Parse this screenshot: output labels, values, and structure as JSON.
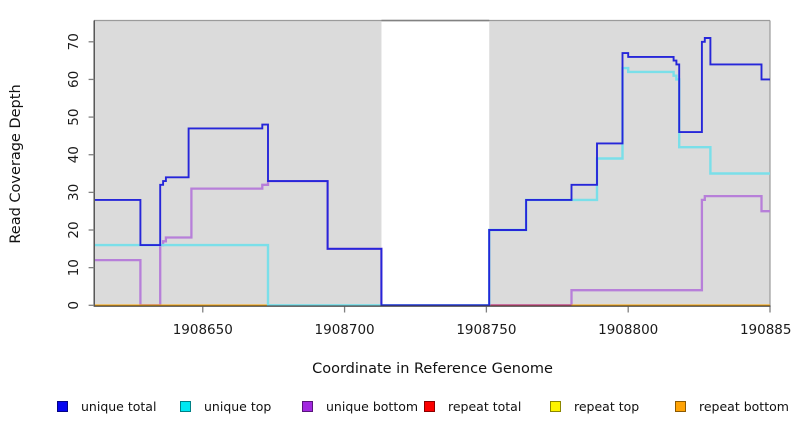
{
  "chart_data": {
    "type": "line",
    "subtype": "step-post-coverage-plot",
    "title": "",
    "xlabel": "Coordinate in Reference Genome",
    "ylabel": "Read Coverage Depth",
    "xlim": [
      1908612,
      1908850
    ],
    "ylim": [
      0,
      75
    ],
    "x_ticks": [
      1908650,
      1908700,
      1908750,
      1908800,
      1908850
    ],
    "x_tick_labels": [
      "1908650",
      "1908700",
      "1908750",
      "1908800",
      "1908850"
    ],
    "y_ticks": [
      0,
      10,
      20,
      30,
      40,
      50,
      60,
      70
    ],
    "y_tick_labels": [
      "0",
      "10",
      "20",
      "30",
      "40",
      "50",
      "60",
      "70"
    ],
    "grid": false,
    "panel_background": "#dbdbdb",
    "panel_border_color": "#9b9b9b",
    "gap_region": {
      "from": 1908713,
      "to": 1908751,
      "color": "#ffffff",
      "top_border_color": "#828282"
    },
    "baseline_overlap_segments": [
      {
        "from": 1908612,
        "to": 1908673,
        "color": "#ffa500"
      },
      {
        "from": 1908673,
        "to": 1908713,
        "color": "#82d2a4"
      },
      {
        "from": 1908751,
        "to": 1908780,
        "color": "#d44a6a"
      },
      {
        "from": 1908780,
        "to": 1908850,
        "color": "#ffa500"
      }
    ],
    "series": [
      {
        "name": "unique total",
        "color_line": "#2626d9",
        "color_swatch": "#0505f0",
        "points": [
          [
            1908612,
            28
          ],
          [
            1908628,
            16
          ],
          [
            1908635,
            32
          ],
          [
            1908636,
            33
          ],
          [
            1908637,
            34
          ],
          [
            1908645,
            47
          ],
          [
            1908671,
            48
          ],
          [
            1908673,
            33
          ],
          [
            1908694,
            15
          ],
          [
            1908713,
            0
          ],
          [
            1908751,
            20
          ],
          [
            1908764,
            28
          ],
          [
            1908780,
            32
          ],
          [
            1908789,
            43
          ],
          [
            1908798,
            67
          ],
          [
            1908800,
            66
          ],
          [
            1908816,
            65
          ],
          [
            1908817,
            64
          ],
          [
            1908818,
            46
          ],
          [
            1908826,
            70
          ],
          [
            1908827,
            71
          ],
          [
            1908829,
            64
          ],
          [
            1908847,
            60
          ],
          [
            1908850,
            60
          ]
        ]
      },
      {
        "name": "unique top",
        "color_line": "#7adfe9",
        "color_swatch": "#00e8f2",
        "points": [
          [
            1908612,
            16
          ],
          [
            1908673,
            0
          ],
          [
            1908751,
            20
          ],
          [
            1908764,
            28
          ],
          [
            1908789,
            39
          ],
          [
            1908798,
            63
          ],
          [
            1908800,
            62
          ],
          [
            1908816,
            61
          ],
          [
            1908817,
            60
          ],
          [
            1908818,
            42
          ],
          [
            1908829,
            35
          ],
          [
            1908850,
            35
          ]
        ]
      },
      {
        "name": "unique bottom",
        "color_line": "#b77fd9",
        "color_swatch": "#a228e0",
        "points": [
          [
            1908612,
            12
          ],
          [
            1908628,
            0
          ],
          [
            1908635,
            16
          ],
          [
            1908636,
            17
          ],
          [
            1908637,
            18
          ],
          [
            1908646,
            31
          ],
          [
            1908671,
            32
          ],
          [
            1908673,
            33
          ],
          [
            1908694,
            15
          ],
          [
            1908713,
            0
          ],
          [
            1908780,
            4
          ],
          [
            1908826,
            28
          ],
          [
            1908827,
            29
          ],
          [
            1908847,
            25
          ],
          [
            1908850,
            25
          ]
        ]
      },
      {
        "name": "repeat total",
        "color_line": "#cc1133",
        "color_swatch": "#fb0000",
        "points": [
          [
            1908612,
            0
          ],
          [
            1908850,
            0
          ]
        ]
      },
      {
        "name": "repeat top",
        "color_line": "#ffff00",
        "color_swatch": "#fdf400",
        "points": [
          [
            1908612,
            0
          ],
          [
            1908850,
            0
          ]
        ]
      },
      {
        "name": "repeat bottom",
        "color_line": "#ffa500",
        "color_swatch": "#ffa305",
        "points": [
          [
            1908612,
            0
          ],
          [
            1908850,
            0
          ]
        ]
      }
    ],
    "legend_position": "bottom"
  },
  "legend": {
    "items": [
      {
        "label": "unique total"
      },
      {
        "label": "unique top"
      },
      {
        "label": "unique bottom"
      },
      {
        "label": "repeat total"
      },
      {
        "label": "repeat top"
      },
      {
        "label": "repeat bottom"
      }
    ]
  }
}
